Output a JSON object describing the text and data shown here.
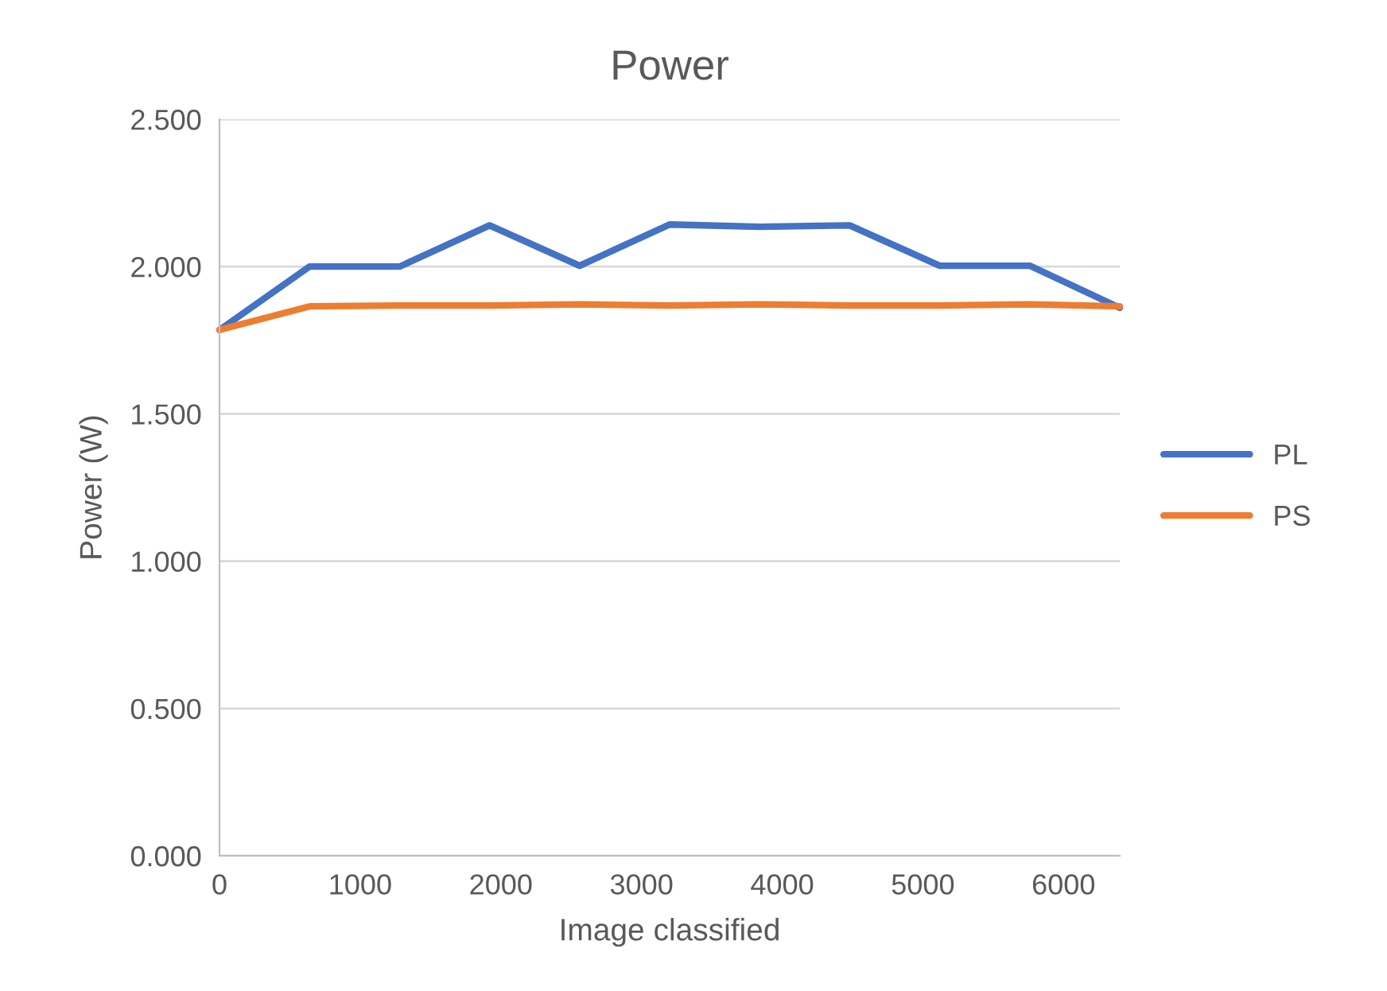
{
  "chart_data": {
    "type": "line",
    "title": "Power",
    "xlabel": "Image classified",
    "ylabel": "Power (W)",
    "x": [
      0,
      640,
      1280,
      1920,
      2560,
      3200,
      3840,
      4480,
      5120,
      5760,
      6400
    ],
    "series": [
      {
        "name": "PL",
        "color": "#4472c4",
        "values": [
          1.785,
          2.0,
          2.0,
          2.14,
          2.003,
          2.143,
          2.135,
          2.14,
          2.003,
          2.003,
          1.86
        ]
      },
      {
        "name": "PS",
        "color": "#ed7d31",
        "values": [
          1.785,
          1.865,
          1.868,
          1.868,
          1.872,
          1.868,
          1.872,
          1.868,
          1.868,
          1.872,
          1.865
        ]
      }
    ],
    "xlim": [
      0,
      6400
    ],
    "xticks": [
      0,
      1000,
      2000,
      3000,
      4000,
      5000,
      6000
    ],
    "ylim": [
      0,
      2.5
    ],
    "yticks": [
      {
        "value": 0,
        "label": "0.000"
      },
      {
        "value": 0.5,
        "label": "0.500"
      },
      {
        "value": 1,
        "label": "1.000"
      },
      {
        "value": 1.5,
        "label": "1.500"
      },
      {
        "value": 2,
        "label": "2.000"
      },
      {
        "value": 2.5,
        "label": "2.500"
      }
    ],
    "grid": "y",
    "legend": "right",
    "marker": "none",
    "line_style": "solid"
  }
}
